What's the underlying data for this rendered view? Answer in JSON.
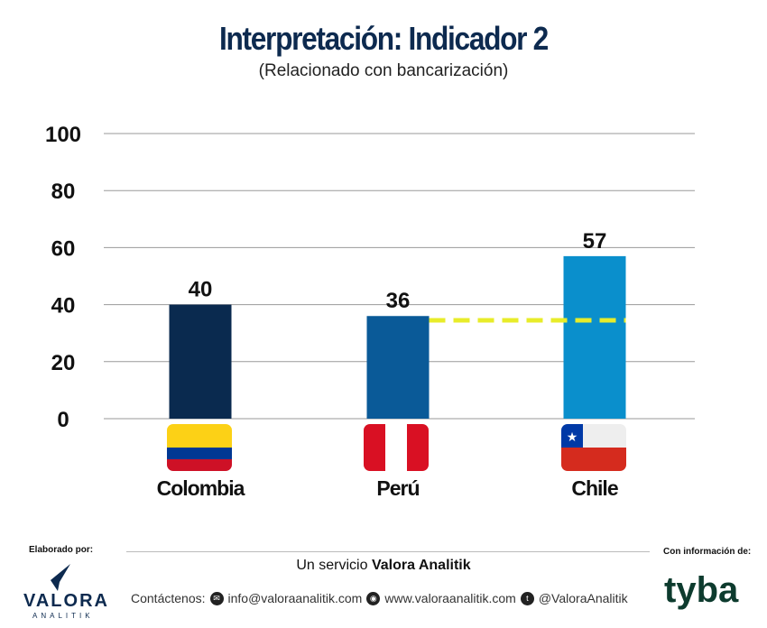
{
  "chart_data": {
    "type": "bar",
    "title": "Interpretación: Indicador 2",
    "subtitle": "(Relacionado con bancarización)",
    "categories": [
      "Colombia",
      "Perú",
      "Chile"
    ],
    "values": [
      40,
      36,
      57
    ],
    "data_labels": [
      "40",
      "36",
      "57"
    ],
    "bar_colors": [
      "#0a2a4f",
      "#0a5a98",
      "#0a8fcc"
    ],
    "ylim": [
      0,
      100
    ],
    "yticks": [
      "0",
      "20",
      "40",
      "60",
      "80",
      "100"
    ],
    "grid": true,
    "reference_line": {
      "value": 34.5,
      "color": "#e8ec2a",
      "style": "dashed",
      "from": "Perú",
      "to": "Chile"
    }
  },
  "footer": {
    "made_by": "Elaborado por:",
    "info_from": "Con información de:",
    "service_prefix": "Un servicio ",
    "service_brand": "Valora Analitik",
    "contact_label": "Contáctenos:",
    "email": "info@valoraanalitik.com",
    "web": "www.valoraanalitik.com",
    "twitter": "@ValoraAnalitik",
    "logo_left": "VALORA",
    "logo_left_sub": "ANALITIK",
    "logo_right": "tyba"
  }
}
